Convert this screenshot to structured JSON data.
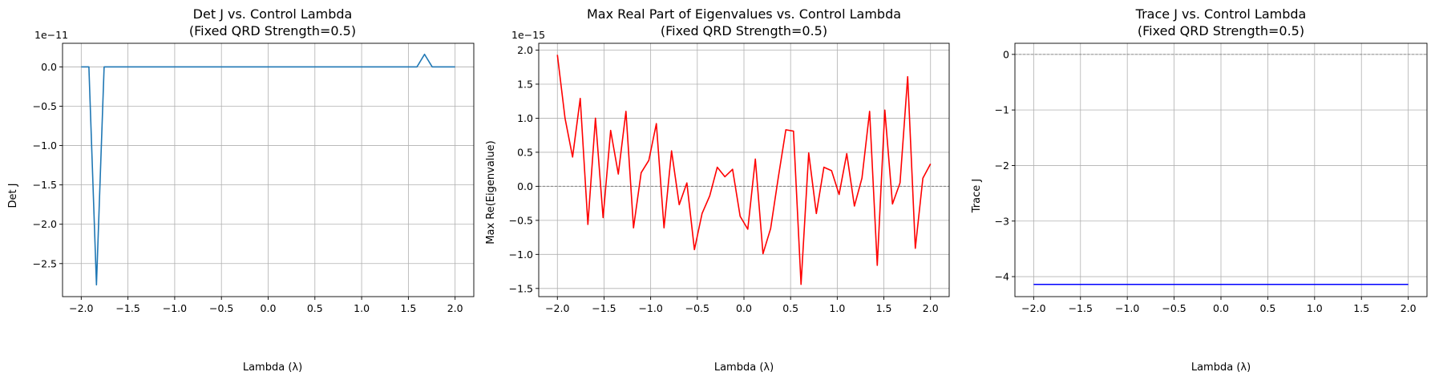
{
  "chart_data": [
    {
      "type": "line",
      "title": "Det J vs. Control Lambda",
      "subtitle": "(Fixed QRD Strength=0.5)",
      "xlabel": "Lambda (λ)",
      "ylabel": "Det J",
      "offset_text": "1e−11",
      "xlim": [
        -2.2,
        2.2
      ],
      "ylim": [
        -2.92,
        0.3
      ],
      "xticks": [
        -2.0,
        -1.5,
        -1.0,
        -0.5,
        0.0,
        0.5,
        1.0,
        1.5,
        2.0
      ],
      "xtick_labels": [
        "−2.0",
        "−1.5",
        "−1.0",
        "−0.5",
        "0.0",
        "0.5",
        "1.0",
        "1.5",
        "2.0"
      ],
      "yticks": [
        -2.5,
        -2.0,
        -1.5,
        -1.0,
        -0.5,
        0.0
      ],
      "ytick_labels": [
        "−2.5",
        "−2.0",
        "−1.5",
        "−1.0",
        "−0.5",
        "0.0"
      ],
      "grid": true,
      "hline": null,
      "series": [
        {
          "color": "#1f77b4",
          "x": [
            -2.0,
            -1.918,
            -1.837,
            -1.755,
            1.592,
            1.673,
            1.755,
            2.0
          ],
          "y": [
            0.0,
            0.0,
            -2.77,
            0.0,
            0.0,
            0.16,
            0.0,
            0.0
          ]
        }
      ]
    },
    {
      "type": "line",
      "title": "Max Real Part of Eigenvalues vs. Control Lambda",
      "subtitle": "(Fixed QRD Strength=0.5)",
      "xlabel": "Lambda (λ)",
      "ylabel": "Max Re(Eigenvalue)",
      "offset_text": "1e−15",
      "xlim": [
        -2.2,
        2.2
      ],
      "ylim": [
        -1.62,
        2.1
      ],
      "xticks": [
        -2.0,
        -1.5,
        -1.0,
        -0.5,
        0.0,
        0.5,
        1.0,
        1.5,
        2.0
      ],
      "xtick_labels": [
        "−2.0",
        "−1.5",
        "−1.0",
        "−0.5",
        "0.0",
        "0.5",
        "1.0",
        "1.5",
        "2.0"
      ],
      "yticks": [
        -1.5,
        -1.0,
        -0.5,
        0.0,
        0.5,
        1.0,
        1.5,
        2.0
      ],
      "ytick_labels": [
        "−1.5",
        "−1.0",
        "−0.5",
        "0.0",
        "0.5",
        "1.0",
        "1.5",
        "2.0"
      ],
      "grid": true,
      "hline": 0,
      "series": [
        {
          "color": "#ff0000",
          "x": [
            -2.0,
            -1.918,
            -1.837,
            -1.755,
            -1.673,
            -1.592,
            -1.51,
            -1.429,
            -1.347,
            -1.265,
            -1.184,
            -1.102,
            -1.02,
            -0.939,
            -0.857,
            -0.776,
            -0.694,
            -0.612,
            -0.531,
            -0.449,
            -0.367,
            -0.286,
            -0.204,
            -0.122,
            -0.041,
            0.041,
            0.122,
            0.204,
            0.286,
            0.367,
            0.449,
            0.531,
            0.612,
            0.694,
            0.776,
            0.857,
            0.939,
            1.02,
            1.102,
            1.184,
            1.265,
            1.347,
            1.429,
            1.51,
            1.592,
            1.673,
            1.755,
            1.837,
            1.918,
            2.0
          ],
          "y": [
            1.93,
            1.0,
            0.43,
            1.29,
            -0.56,
            1.0,
            -0.46,
            0.82,
            0.18,
            1.1,
            -0.61,
            0.2,
            0.38,
            0.92,
            -0.61,
            0.52,
            -0.27,
            0.05,
            -0.93,
            -0.4,
            -0.14,
            0.28,
            0.14,
            0.25,
            -0.44,
            -0.63,
            0.4,
            -0.99,
            -0.62,
            0.12,
            0.83,
            0.81,
            -1.44,
            0.49,
            -0.4,
            0.28,
            0.23,
            -0.12,
            0.48,
            -0.29,
            0.12,
            1.1,
            -1.16,
            1.12,
            -0.26,
            0.05,
            1.61,
            -0.91,
            0.12,
            0.33
          ]
        }
      ]
    },
    {
      "type": "line",
      "title": "Trace J vs. Control Lambda",
      "subtitle": "(Fixed QRD Strength=0.5)",
      "xlabel": "Lambda (λ)",
      "ylabel": "Trace J",
      "offset_text": "",
      "xlim": [
        -2.2,
        2.2
      ],
      "ylim": [
        -4.36,
        0.2
      ],
      "xticks": [
        -2.0,
        -1.5,
        -1.0,
        -0.5,
        0.0,
        0.5,
        1.0,
        1.5,
        2.0
      ],
      "xtick_labels": [
        "−2.0",
        "−1.5",
        "−1.0",
        "−0.5",
        "0.0",
        "0.5",
        "1.0",
        "1.5",
        "2.0"
      ],
      "yticks": [
        -4,
        -3,
        -2,
        -1,
        0
      ],
      "ytick_labels": [
        "−4",
        "−3",
        "−2",
        "−1",
        "0"
      ],
      "grid": true,
      "hline": 0,
      "series": [
        {
          "color": "#0000ff",
          "x": [
            -2.0,
            2.0
          ],
          "y": [
            -4.14,
            -4.14
          ]
        }
      ]
    }
  ]
}
